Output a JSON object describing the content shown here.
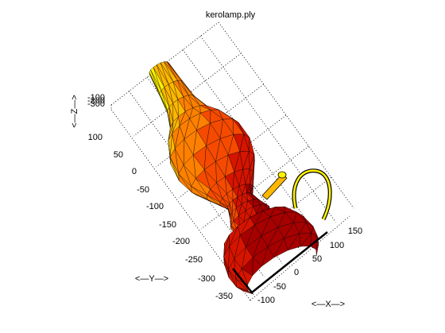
{
  "chart_data": {
    "type": "3d-surface",
    "title": "kerolamp.ply",
    "xlabel": "<—X—>",
    "ylabel": "<—Y—>",
    "zlabel": "<—Z—>",
    "x_ticks": [
      "-100",
      "-50",
      "0",
      "50",
      "100",
      "150"
    ],
    "y_ticks": [
      "-350",
      "-300",
      "-250",
      "-200",
      "-150",
      "-100",
      "-50",
      "0",
      "50",
      "100"
    ],
    "z_ticks": [
      "-100",
      "-200",
      "-300"
    ],
    "xlim": [
      -100,
      150
    ],
    "ylim": [
      -350,
      100
    ],
    "grid": true,
    "colormap": [
      "#fff200",
      "#ffb800",
      "#ff8000",
      "#f54a00",
      "#d61400",
      "#a60000"
    ],
    "edge_color": "#000000",
    "parts": [
      {
        "name": "chimney-neck",
        "shape": "surface-of-revolution"
      },
      {
        "name": "globe",
        "shape": "surface-of-revolution"
      },
      {
        "name": "collar",
        "shape": "surface-of-revolution"
      },
      {
        "name": "burner-knob",
        "shape": "cylinder"
      },
      {
        "name": "font-base",
        "shape": "surface-of-revolution"
      },
      {
        "name": "handle",
        "shape": "loop"
      }
    ]
  }
}
